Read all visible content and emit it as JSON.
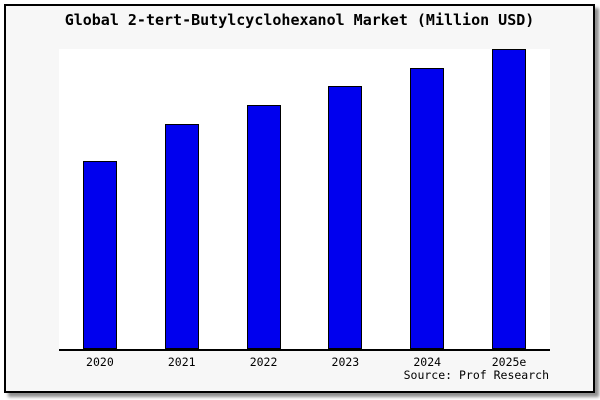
{
  "title": "Global 2-tert-Butylcyclohexanol Market (Million USD)",
  "source": "Source: Prof Research",
  "colors": {
    "bar_fill": "#0000EE",
    "bar_border": "#000000",
    "panel_background": "#F7F7F7",
    "plot_background": "#FFFFFF",
    "axis": "#000000",
    "frame_border": "#000000",
    "shadow": "#8F8F8F",
    "text": "#000000"
  },
  "chart_data": {
    "type": "bar",
    "title": "Global 2-tert-Butylcyclohexanol Market (Million USD)",
    "categories": [
      "2020",
      "2021",
      "2022",
      "2023",
      "2024",
      "2025e"
    ],
    "values": [
      62.6,
      75.1,
      81.4,
      87.7,
      93.6,
      100
    ],
    "value_note": "No y-axis or data labels shown; values are relative bar heights normalized so 2025e = 100",
    "xlabel": "",
    "ylabel": "",
    "ylim": [
      0,
      100
    ],
    "grid": false,
    "legend": false,
    "annotations": [
      "Source: Prof Research"
    ]
  }
}
